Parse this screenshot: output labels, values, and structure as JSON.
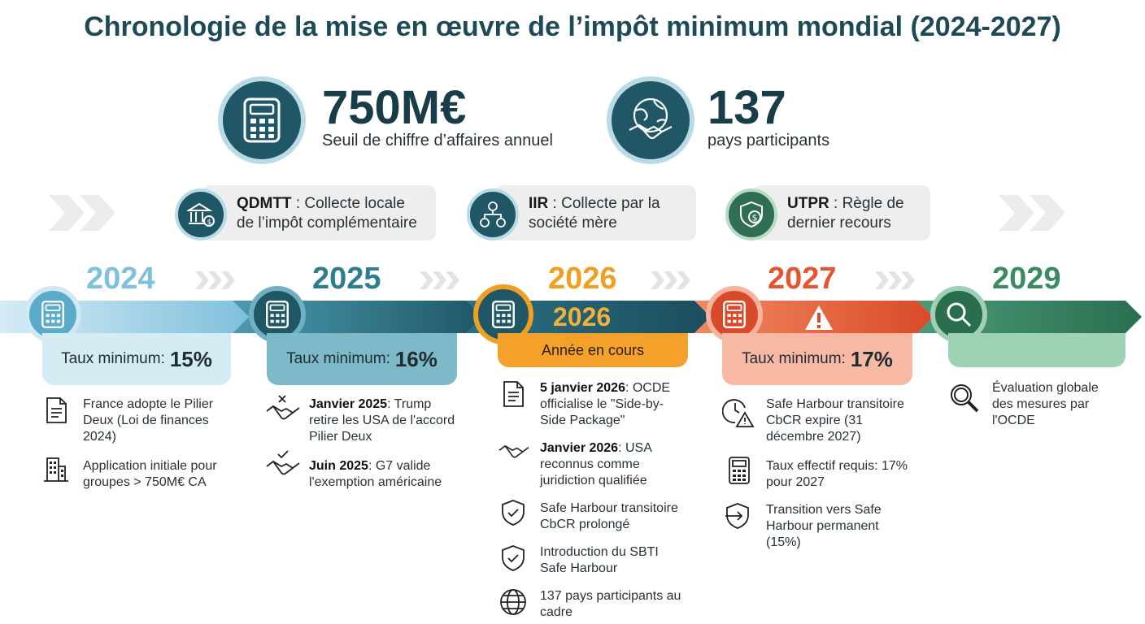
{
  "title": "Chronologie de la mise en œuvre de l’impôt minimum mondial (2024-2027)",
  "stats": [
    {
      "value": "750M€",
      "label": "Seuil de chiffre d’affaires annuel",
      "icon": "calculator-icon"
    },
    {
      "value": "137",
      "label": "pays participants",
      "icon": "globe-handshake-icon"
    }
  ],
  "mechanisms": [
    {
      "name": "QDMTT",
      "desc1": " : Collecte locale",
      "desc2": "de l’impôt complémentaire",
      "icon": "bank-icon"
    },
    {
      "name": "IIR",
      "desc1": " : Collecte par la",
      "desc2": "société mère",
      "icon": "hierarchy-icon"
    },
    {
      "name": "UTPR",
      "desc1": " : Règle de",
      "desc2": "dernier recours",
      "icon": "shield-dollar-icon"
    }
  ],
  "years": [
    {
      "year": "2024",
      "color": "#6fb8d9",
      "rate_label": "Taux minimum:",
      "rate_value": "15%",
      "events": [
        {
          "icon": "document-icon",
          "bold": "",
          "text": "France adopte le Pilier Deux (Loi de finances 2024)"
        },
        {
          "icon": "building-icon",
          "bold": "",
          "text": "Application initiale pour groupes > 750M€ CA"
        }
      ]
    },
    {
      "year": "2025",
      "color": "#2f7d91",
      "rate_label": "Taux minimum:",
      "rate_value": "16%",
      "events": [
        {
          "icon": "handshake-cancel-icon",
          "bold": "Janvier 2025",
          "text": ": Trump retire les USA de l'accord Pilier Deux"
        },
        {
          "icon": "handshake-check-icon",
          "bold": "Juin 2025",
          "text": ": G7 valide l'exemption américaine"
        }
      ]
    },
    {
      "year": "2026",
      "color": "#f0a020",
      "subtitle": "2026",
      "rate_label": "Année en cours",
      "events": [
        {
          "icon": "document-icon",
          "bold": "5 janvier 2026",
          "text": ": OCDE officialise le \"Side-by-Side Package\""
        },
        {
          "icon": "handshake-icon",
          "bold": "Janvier 2026",
          "text": ": USA reconnus comme juridiction qualifiée"
        },
        {
          "icon": "shield-check-icon",
          "bold": "",
          "text": "Safe Harbour transitoire CbCR prolongé"
        },
        {
          "icon": "shield-check-icon",
          "bold": "",
          "text": "Introduction du SBTI Safe Harbour"
        },
        {
          "icon": "globe-icon",
          "bold": "",
          "text": "137 pays participants au cadre"
        }
      ]
    },
    {
      "year": "2027",
      "color": "#e55532",
      "rate_label": "Taux minimum:",
      "rate_value": "17%",
      "events": [
        {
          "icon": "clock-warning-icon",
          "bold": "",
          "text": "Safe Harbour transitoire CbCR expire (31 décembre 2027)"
        },
        {
          "icon": "calculator-icon",
          "bold": "",
          "text": "Taux effectif requis: 17% pour 2027"
        },
        {
          "icon": "shield-arrow-icon",
          "bold": "",
          "text": "Transition vers Safe Harbour permanent (15%)"
        }
      ]
    },
    {
      "year": "2029",
      "color": "#3a8a62",
      "events": [
        {
          "icon": "magnifier-icon",
          "bold": "",
          "text": "Évaluation globale des mesures par l'OCDE"
        }
      ]
    }
  ]
}
